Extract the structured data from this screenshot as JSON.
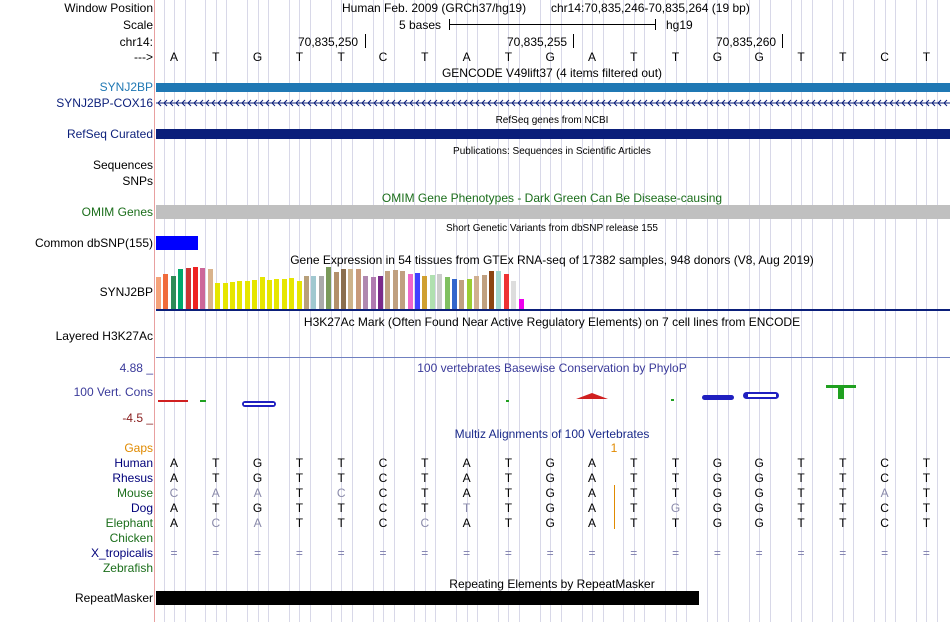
{
  "header": {
    "window_position_label": "Window Position",
    "scale_label": "Scale",
    "chrom_label": "chr14:",
    "arrow_label": "--->",
    "assembly_text": "Human Feb. 2009 (GRCh37/hg19)",
    "position_text": "chr14:70,835,246-70,835,264 (19 bp)",
    "scale_text": "5 bases",
    "scale_db": "hg19",
    "ticks": [
      "70,835,250",
      "70,835,255",
      "70,835,260"
    ]
  },
  "sequence": [
    "A",
    "T",
    "G",
    "T",
    "T",
    "C",
    "T",
    "A",
    "T",
    "G",
    "A",
    "T",
    "T",
    "G",
    "G",
    "T",
    "T",
    "C",
    "T"
  ],
  "tracks": {
    "gencode": {
      "title": "GENCODE V49lift37 (4 items filtered out)",
      "rows": [
        "SYNJ2BP",
        "SYNJ2BP-COX16"
      ],
      "color": "#1f78b4"
    },
    "refseq": {
      "title": "RefSeq genes from NCBI",
      "label": "RefSeq Curated",
      "color": "#0b1f7a"
    },
    "publications": {
      "title": "Publications: Sequences in Scientific Articles",
      "labels": [
        "Sequences",
        "SNPs"
      ]
    },
    "omim": {
      "title": "OMIM Gene Phenotypes - Dark Green Can Be Disease-causing",
      "label": "OMIM Genes",
      "color": "#1b6e1b"
    },
    "dbsnp": {
      "title": "Short Genetic Variants from dbSNP release 155",
      "label": "Common dbSNP(155)"
    },
    "gtex": {
      "title": "Gene Expression in 54 tissues from GTEx RNA-seq of 17382 samples, 948 donors (V8, Aug 2019)",
      "label": "SYNJ2BP"
    },
    "h3k27ac": {
      "title": "H3K27Ac Mark (Often Found Near Active Regulatory Elements) on 7 cell lines from ENCODE",
      "label": "Layered H3K27Ac"
    },
    "phylop": {
      "title": "100 vertebrates Basewise Conservation by PhyloP",
      "label": "100 Vert. Cons",
      "max": "4.88 _",
      "min": "-4.5 _",
      "color": "#3a3a9a"
    },
    "multiz": {
      "title": "Multiz Alignments of 100 Vertebrates",
      "gaps_label": "Gaps",
      "gap_count": "1",
      "species": [
        {
          "name": "Human",
          "color": "#00007a",
          "bases": [
            "A",
            "T",
            "G",
            "T",
            "T",
            "C",
            "T",
            "A",
            "T",
            "G",
            "A",
            "T",
            "T",
            "G",
            "G",
            "T",
            "T",
            "C",
            "T"
          ]
        },
        {
          "name": "Rhesus",
          "color": "#00007a",
          "bases": [
            "A",
            "T",
            "G",
            "T",
            "T",
            "C",
            "T",
            "A",
            "T",
            "G",
            "A",
            "T",
            "T",
            "G",
            "G",
            "T",
            "T",
            "C",
            "T"
          ]
        },
        {
          "name": "Mouse",
          "color": "#1b6e1b",
          "bases": [
            "C",
            "A",
            "A",
            "T",
            "C",
            "C",
            "T",
            "A",
            "T",
            "G",
            "A",
            "T",
            "T",
            "G",
            "G",
            "T",
            "T",
            "A",
            "T"
          ]
        },
        {
          "name": "Dog",
          "color": "#00007a",
          "bases": [
            "A",
            "T",
            "G",
            "T",
            "T",
            "C",
            "T",
            "T",
            "T",
            "G",
            "A",
            "T",
            "G",
            "G",
            "G",
            "T",
            "T",
            "C",
            "T"
          ]
        },
        {
          "name": "Elephant",
          "color": "#1b6e1b",
          "bases": [
            "A",
            "C",
            "A",
            "T",
            "T",
            "C",
            "C",
            "A",
            "T",
            "G",
            "A",
            "T",
            "T",
            "G",
            "G",
            "T",
            "T",
            "C",
            "T"
          ]
        },
        {
          "name": "Chicken",
          "color": "#1b6e1b",
          "bases": []
        },
        {
          "name": "X_tropicalis",
          "color": "#00007a",
          "bases": [
            "=",
            "=",
            "=",
            "=",
            "=",
            "=",
            "=",
            "=",
            "=",
            "=",
            "=",
            "=",
            "=",
            "=",
            "=",
            "=",
            "=",
            "=",
            "="
          ]
        },
        {
          "name": "Zebrafish",
          "color": "#1b6e1b",
          "bases": []
        }
      ]
    },
    "repeatmasker": {
      "title": "Repeating Elements by RepeatMasker",
      "label": "RepeatMasker"
    }
  }
}
